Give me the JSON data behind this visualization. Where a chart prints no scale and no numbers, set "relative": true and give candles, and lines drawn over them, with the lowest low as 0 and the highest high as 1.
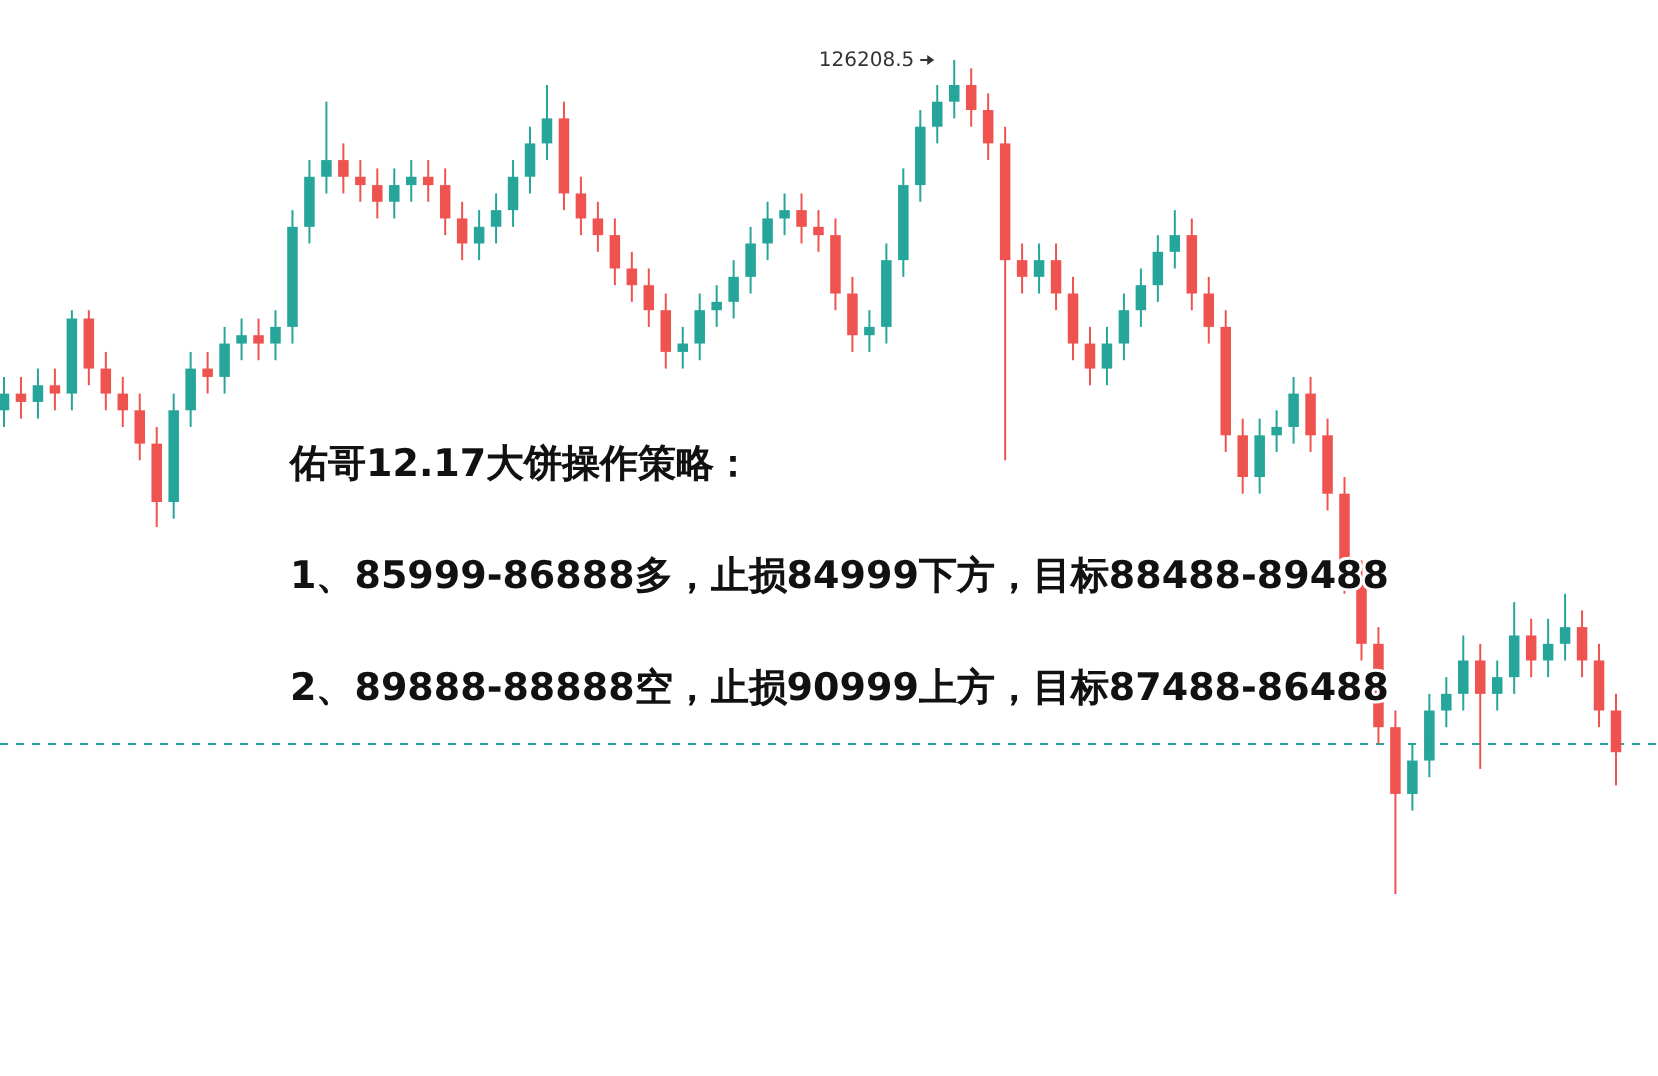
{
  "chart_data": {
    "type": "candlestick",
    "relative": true,
    "title": "佑哥12.17大饼操作策略：",
    "annotations": [
      "126208.5",
      "1、85999-86888多，止损84999下方，目标88488-89488",
      "2、89888-88888空，止损90999上方，目标87488-86488"
    ],
    "ref_lines": [
      {
        "axis": "y",
        "value": 0.18,
        "color": "#26a69a",
        "line_style": "dashed"
      }
    ],
    "categories": [
      null,
      null,
      null,
      null,
      null,
      null,
      null,
      null,
      null,
      null,
      null,
      null,
      null,
      null,
      null,
      null,
      null,
      null,
      null,
      null,
      null,
      null,
      null,
      null,
      null,
      null,
      null,
      null,
      null,
      null,
      null,
      null,
      null,
      null,
      null,
      null,
      null,
      null,
      null,
      null,
      null,
      null,
      null,
      null,
      null,
      null,
      null,
      null,
      null,
      null,
      null,
      null,
      null,
      null,
      null,
      null,
      null,
      null,
      null,
      null,
      null,
      null,
      null,
      null,
      null,
      null,
      null,
      null,
      null,
      null,
      null,
      null,
      null,
      null,
      null,
      null,
      null,
      null,
      null,
      null,
      null,
      null,
      null,
      null,
      null,
      null,
      null,
      null,
      null,
      null,
      null,
      null,
      null,
      null,
      null,
      null
    ],
    "ohlc": [
      [
        0.58,
        0.62,
        0.56,
        0.6
      ],
      [
        0.6,
        0.62,
        0.57,
        0.59
      ],
      [
        0.59,
        0.63,
        0.57,
        0.61
      ],
      [
        0.61,
        0.63,
        0.58,
        0.6
      ],
      [
        0.6,
        0.7,
        0.58,
        0.69
      ],
      [
        0.69,
        0.7,
        0.61,
        0.63
      ],
      [
        0.63,
        0.65,
        0.58,
        0.6
      ],
      [
        0.6,
        0.62,
        0.56,
        0.58
      ],
      [
        0.58,
        0.6,
        0.52,
        0.54
      ],
      [
        0.54,
        0.56,
        0.44,
        0.47
      ],
      [
        0.47,
        0.6,
        0.45,
        0.58
      ],
      [
        0.58,
        0.65,
        0.56,
        0.63
      ],
      [
        0.63,
        0.65,
        0.6,
        0.62
      ],
      [
        0.62,
        0.68,
        0.6,
        0.66
      ],
      [
        0.66,
        0.69,
        0.64,
        0.67
      ],
      [
        0.67,
        0.69,
        0.64,
        0.66
      ],
      [
        0.66,
        0.7,
        0.64,
        0.68
      ],
      [
        0.68,
        0.82,
        0.66,
        0.8
      ],
      [
        0.8,
        0.88,
        0.78,
        0.86
      ],
      [
        0.86,
        0.95,
        0.84,
        0.88
      ],
      [
        0.88,
        0.9,
        0.84,
        0.86
      ],
      [
        0.86,
        0.88,
        0.83,
        0.85
      ],
      [
        0.85,
        0.87,
        0.81,
        0.83
      ],
      [
        0.83,
        0.87,
        0.81,
        0.85
      ],
      [
        0.85,
        0.88,
        0.83,
        0.86
      ],
      [
        0.86,
        0.88,
        0.83,
        0.85
      ],
      [
        0.85,
        0.87,
        0.79,
        0.81
      ],
      [
        0.81,
        0.83,
        0.76,
        0.78
      ],
      [
        0.78,
        0.82,
        0.76,
        0.8
      ],
      [
        0.8,
        0.84,
        0.78,
        0.82
      ],
      [
        0.82,
        0.88,
        0.8,
        0.86
      ],
      [
        0.86,
        0.92,
        0.84,
        0.9
      ],
      [
        0.9,
        0.97,
        0.88,
        0.93
      ],
      [
        0.93,
        0.95,
        0.82,
        0.84
      ],
      [
        0.84,
        0.86,
        0.79,
        0.81
      ],
      [
        0.81,
        0.83,
        0.77,
        0.79
      ],
      [
        0.79,
        0.81,
        0.73,
        0.75
      ],
      [
        0.75,
        0.77,
        0.71,
        0.73
      ],
      [
        0.73,
        0.75,
        0.68,
        0.7
      ],
      [
        0.7,
        0.72,
        0.63,
        0.65
      ],
      [
        0.65,
        0.68,
        0.63,
        0.66
      ],
      [
        0.66,
        0.72,
        0.64,
        0.7
      ],
      [
        0.7,
        0.73,
        0.68,
        0.71
      ],
      [
        0.71,
        0.76,
        0.69,
        0.74
      ],
      [
        0.74,
        0.8,
        0.72,
        0.78
      ],
      [
        0.78,
        0.83,
        0.76,
        0.81
      ],
      [
        0.81,
        0.84,
        0.79,
        0.82
      ],
      [
        0.82,
        0.84,
        0.78,
        0.8
      ],
      [
        0.8,
        0.82,
        0.77,
        0.79
      ],
      [
        0.79,
        0.81,
        0.7,
        0.72
      ],
      [
        0.72,
        0.74,
        0.65,
        0.67
      ],
      [
        0.67,
        0.7,
        0.65,
        0.68
      ],
      [
        0.68,
        0.78,
        0.66,
        0.76
      ],
      [
        0.76,
        0.87,
        0.74,
        0.85
      ],
      [
        0.85,
        0.94,
        0.83,
        0.92
      ],
      [
        0.92,
        0.97,
        0.9,
        0.95
      ],
      [
        0.95,
        1.0,
        0.93,
        0.97
      ],
      [
        0.97,
        0.99,
        0.92,
        0.94
      ],
      [
        0.94,
        0.96,
        0.88,
        0.9
      ],
      [
        0.9,
        0.92,
        0.52,
        0.76
      ],
      [
        0.76,
        0.78,
        0.72,
        0.74
      ],
      [
        0.74,
        0.78,
        0.72,
        0.76
      ],
      [
        0.76,
        0.78,
        0.7,
        0.72
      ],
      [
        0.72,
        0.74,
        0.64,
        0.66
      ],
      [
        0.66,
        0.68,
        0.61,
        0.63
      ],
      [
        0.63,
        0.68,
        0.61,
        0.66
      ],
      [
        0.66,
        0.72,
        0.64,
        0.7
      ],
      [
        0.7,
        0.75,
        0.68,
        0.73
      ],
      [
        0.73,
        0.79,
        0.71,
        0.77
      ],
      [
        0.77,
        0.82,
        0.75,
        0.79
      ],
      [
        0.79,
        0.81,
        0.7,
        0.72
      ],
      [
        0.72,
        0.74,
        0.66,
        0.68
      ],
      [
        0.68,
        0.7,
        0.53,
        0.55
      ],
      [
        0.55,
        0.57,
        0.48,
        0.5
      ],
      [
        0.5,
        0.57,
        0.48,
        0.55
      ],
      [
        0.55,
        0.58,
        0.53,
        0.56
      ],
      [
        0.56,
        0.62,
        0.54,
        0.6
      ],
      [
        0.6,
        0.62,
        0.53,
        0.55
      ],
      [
        0.55,
        0.57,
        0.46,
        0.48
      ],
      [
        0.48,
        0.5,
        0.36,
        0.38
      ],
      [
        0.38,
        0.4,
        0.28,
        0.3
      ],
      [
        0.3,
        0.32,
        0.18,
        0.2
      ],
      [
        0.2,
        0.22,
        0.0,
        0.12
      ],
      [
        0.12,
        0.18,
        0.1,
        0.16
      ],
      [
        0.16,
        0.24,
        0.14,
        0.22
      ],
      [
        0.22,
        0.26,
        0.2,
        0.24
      ],
      [
        0.24,
        0.31,
        0.22,
        0.28
      ],
      [
        0.28,
        0.3,
        0.15,
        0.24
      ],
      [
        0.24,
        0.28,
        0.22,
        0.26
      ],
      [
        0.26,
        0.35,
        0.24,
        0.31
      ],
      [
        0.31,
        0.33,
        0.26,
        0.28
      ],
      [
        0.28,
        0.33,
        0.26,
        0.3
      ],
      [
        0.3,
        0.36,
        0.28,
        0.32
      ],
      [
        0.32,
        0.34,
        0.26,
        0.28
      ],
      [
        0.28,
        0.3,
        0.2,
        0.22
      ],
      [
        0.22,
        0.24,
        0.13,
        0.17
      ]
    ]
  }
}
